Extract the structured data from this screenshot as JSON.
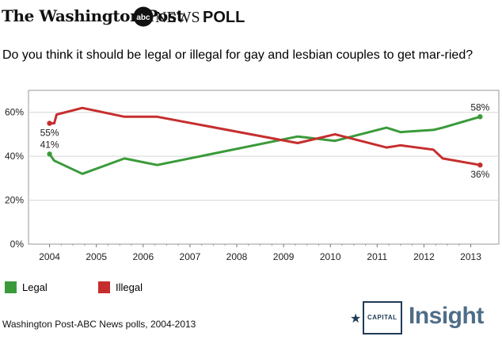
{
  "header": {
    "publisher": "The Washington Post",
    "partner": "NEWS",
    "label": "POLL"
  },
  "question": "Do you think it should be legal or illegal for gay and lesbian couples to get mar-ried?",
  "source": "Washington Post-ABC News polls, 2004-2013",
  "logo": {
    "prefix": "CAPITAL",
    "brand": "Insight"
  },
  "colors": {
    "legal": "#3a9a3a",
    "illegal": "#c62e2e",
    "axis": "#555555",
    "grid": "#d6d6d6"
  },
  "chart_data": {
    "type": "line",
    "title": "",
    "xlabel": "",
    "ylabel": "",
    "xlim": [
      2003.55,
      2013.6
    ],
    "ylim": [
      0,
      70
    ],
    "x_ticks": [
      "2004",
      "2005",
      "2006",
      "2007",
      "2008",
      "2009",
      "2010",
      "2011",
      "2012",
      "2013"
    ],
    "y_ticks": [
      "0%",
      "20%",
      "40%",
      "60%"
    ],
    "y_tick_values": [
      0,
      20,
      40,
      60
    ],
    "grid": "horizontal",
    "legend_placement": "bottom-left",
    "series": [
      {
        "name": "Legal",
        "color": "#3a9a3a",
        "points": [
          [
            2004.0,
            41
          ],
          [
            2004.1,
            38
          ],
          [
            2004.7,
            32
          ],
          [
            2005.6,
            39
          ],
          [
            2006.3,
            36
          ],
          [
            2009.3,
            49
          ],
          [
            2010.1,
            47
          ],
          [
            2011.2,
            53
          ],
          [
            2011.5,
            51
          ],
          [
            2012.2,
            52
          ],
          [
            2012.4,
            53
          ],
          [
            2013.2,
            58
          ]
        ],
        "labels": [
          {
            "x": 2004.0,
            "y": 41,
            "text": "41%"
          },
          {
            "x": 2013.2,
            "y": 58,
            "text": "58%"
          }
        ]
      },
      {
        "name": "Illegal",
        "color": "#c62e2e",
        "points": [
          [
            2004.0,
            55
          ],
          [
            2004.1,
            55
          ],
          [
            2004.15,
            59
          ],
          [
            2004.7,
            62
          ],
          [
            2005.6,
            58
          ],
          [
            2006.3,
            58
          ],
          [
            2009.3,
            46
          ],
          [
            2010.1,
            50
          ],
          [
            2011.2,
            44
          ],
          [
            2011.5,
            45
          ],
          [
            2012.2,
            43
          ],
          [
            2012.4,
            39
          ],
          [
            2013.2,
            36
          ]
        ],
        "labels": [
          {
            "x": 2004.0,
            "y": 55,
            "text": "55%"
          },
          {
            "x": 2013.2,
            "y": 36,
            "text": "36%"
          }
        ]
      }
    ]
  }
}
